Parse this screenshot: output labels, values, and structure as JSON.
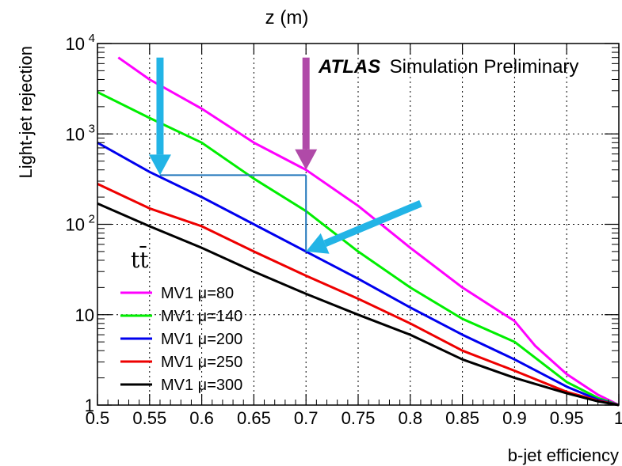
{
  "chart_data": {
    "type": "line",
    "title": "z (m)",
    "xlabel": "b-jet efficiency",
    "ylabel": "Light-jet rejection",
    "xlim": [
      0.5,
      1.0
    ],
    "ylim": [
      1,
      10000
    ],
    "yscale": "log",
    "grid": true,
    "legend_position": "bottom-left",
    "x_ticks": [
      "0.5",
      "0.55",
      "0.6",
      "0.65",
      "0.7",
      "0.75",
      "0.8",
      "0.85",
      "0.9",
      "0.95",
      "1"
    ],
    "y_ticks": [
      {
        "value": 1,
        "label": "1"
      },
      {
        "value": 10,
        "label": "10"
      },
      {
        "value": 100,
        "label": "10",
        "exp": "2"
      },
      {
        "value": 1000,
        "label": "10",
        "exp": "3"
      },
      {
        "value": 10000,
        "label": "10",
        "exp": "4"
      }
    ],
    "annotation": {
      "bold": "ATLAS",
      "text": "Simulation Preliminary"
    },
    "process_label": "tt̄",
    "series": [
      {
        "name": "MV1 μ=80",
        "color": "#ff00ff",
        "x": [
          0.52,
          0.55,
          0.6,
          0.65,
          0.7,
          0.75,
          0.8,
          0.85,
          0.9,
          0.92,
          0.95,
          0.98,
          1.0
        ],
        "y": [
          7000,
          4000,
          1900,
          800,
          400,
          160,
          55,
          20,
          8.5,
          4.5,
          2.2,
          1.3,
          1.0
        ]
      },
      {
        "name": "MV1 μ=140",
        "color": "#00ee00",
        "x": [
          0.5,
          0.55,
          0.6,
          0.65,
          0.7,
          0.75,
          0.8,
          0.85,
          0.9,
          0.95,
          0.98,
          1.0
        ],
        "y": [
          2900,
          1500,
          800,
          320,
          140,
          50,
          20,
          9,
          5,
          1.8,
          1.2,
          1.0
        ]
      },
      {
        "name": "MV1 μ=200",
        "color": "#0000ee",
        "x": [
          0.5,
          0.55,
          0.6,
          0.65,
          0.7,
          0.75,
          0.8,
          0.85,
          0.9,
          0.95,
          0.98,
          1.0
        ],
        "y": [
          800,
          380,
          200,
          100,
          50,
          25,
          12,
          6,
          3.2,
          1.6,
          1.15,
          1.0
        ]
      },
      {
        "name": "MV1 μ=250",
        "color": "#ee0000",
        "x": [
          0.5,
          0.55,
          0.6,
          0.65,
          0.7,
          0.75,
          0.8,
          0.85,
          0.9,
          0.95,
          0.98,
          1.0
        ],
        "y": [
          280,
          150,
          95,
          50,
          27,
          15,
          8,
          4,
          2.4,
          1.4,
          1.12,
          1.0
        ]
      },
      {
        "name": "MV1 μ=300",
        "color": "#000000",
        "x": [
          0.5,
          0.55,
          0.6,
          0.65,
          0.7,
          0.75,
          0.8,
          0.85,
          0.9,
          0.95,
          0.98,
          1.0
        ],
        "y": [
          170,
          95,
          55,
          30,
          17,
          10,
          6,
          3.2,
          2,
          1.35,
          1.1,
          1.0
        ]
      }
    ],
    "reference_lines": {
      "color": "#2277bb",
      "segments": [
        {
          "x1": 0.56,
          "y1": 350,
          "x2": 0.7,
          "y2": 350
        },
        {
          "x1": 0.7,
          "y1": 350,
          "x2": 0.7,
          "y2": 50
        }
      ]
    },
    "arrows": [
      {
        "color": "#22b4e6",
        "from": {
          "x": 0.56,
          "y": 7000
        },
        "to": {
          "x": 0.56,
          "y": 350
        }
      },
      {
        "color": "#b04aa8",
        "from": {
          "x": 0.7,
          "y": 7000
        },
        "to": {
          "x": 0.7,
          "y": 400
        }
      },
      {
        "color": "#22b4e6",
        "from": {
          "x": 0.81,
          "y": 170
        },
        "to": {
          "x": 0.7,
          "y": 50
        }
      }
    ]
  }
}
